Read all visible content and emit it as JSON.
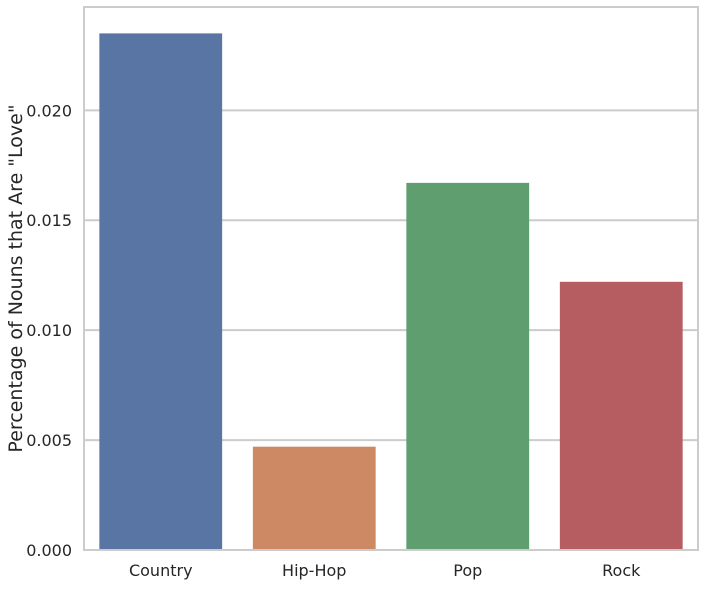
{
  "chart_data": {
    "type": "bar",
    "title": "",
    "xlabel": "",
    "ylabel": "Percentage of Nouns that Are \"Love\"",
    "categories": [
      "Country",
      "Hip-Hop",
      "Pop",
      "Rock"
    ],
    "values": [
      0.0235,
      0.0047,
      0.0167,
      0.0122
    ],
    "colors": [
      "#5975a4",
      "#cc8963",
      "#5f9e6e",
      "#b55d60"
    ],
    "ylim": [
      0,
      0.0247
    ],
    "yticks": [
      0.0,
      0.005,
      0.01,
      0.015,
      0.02
    ],
    "ytick_labels": [
      "0.000",
      "0.005",
      "0.010",
      "0.015",
      "0.020"
    ],
    "grid": "horizontal",
    "legend": "none"
  }
}
